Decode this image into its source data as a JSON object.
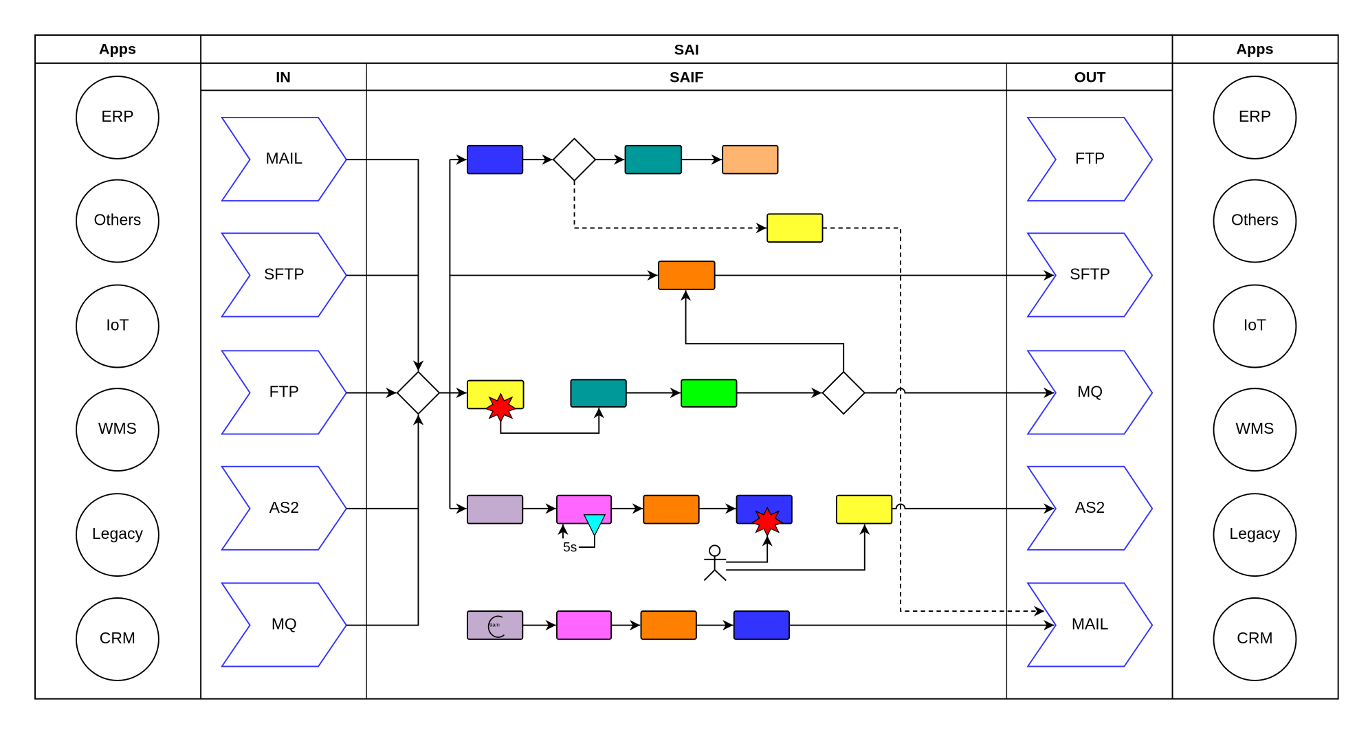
{
  "headers": {
    "apps_left": "Apps",
    "sai": "SAI",
    "apps_right": "Apps",
    "in": "IN",
    "saif": "SAIF",
    "out": "OUT"
  },
  "apps_left": [
    "ERP",
    "Others",
    "IoT",
    "WMS",
    "Legacy",
    "CRM"
  ],
  "apps_right": [
    "ERP",
    "Others",
    "IoT",
    "WMS",
    "Legacy",
    "CRM"
  ],
  "in_channels": [
    "MAIL",
    "SFTP",
    "FTP",
    "AS2",
    "MQ"
  ],
  "out_channels": [
    "FTP",
    "SFTP",
    "MQ",
    "AS2",
    "MAIL"
  ],
  "timer_label": "5s",
  "schedule_label": "9am",
  "colors": {
    "chevron_stroke": "#3333ff",
    "blue": "#3333ff",
    "teal": "#009999",
    "peach": "#ffb570",
    "yellow": "#ffff33",
    "orange": "#ff8000",
    "green": "#00ff00",
    "lilac": "#c3abd0",
    "pink": "#ff66ff",
    "cyan": "#00ffff",
    "red": "#ff0000"
  }
}
